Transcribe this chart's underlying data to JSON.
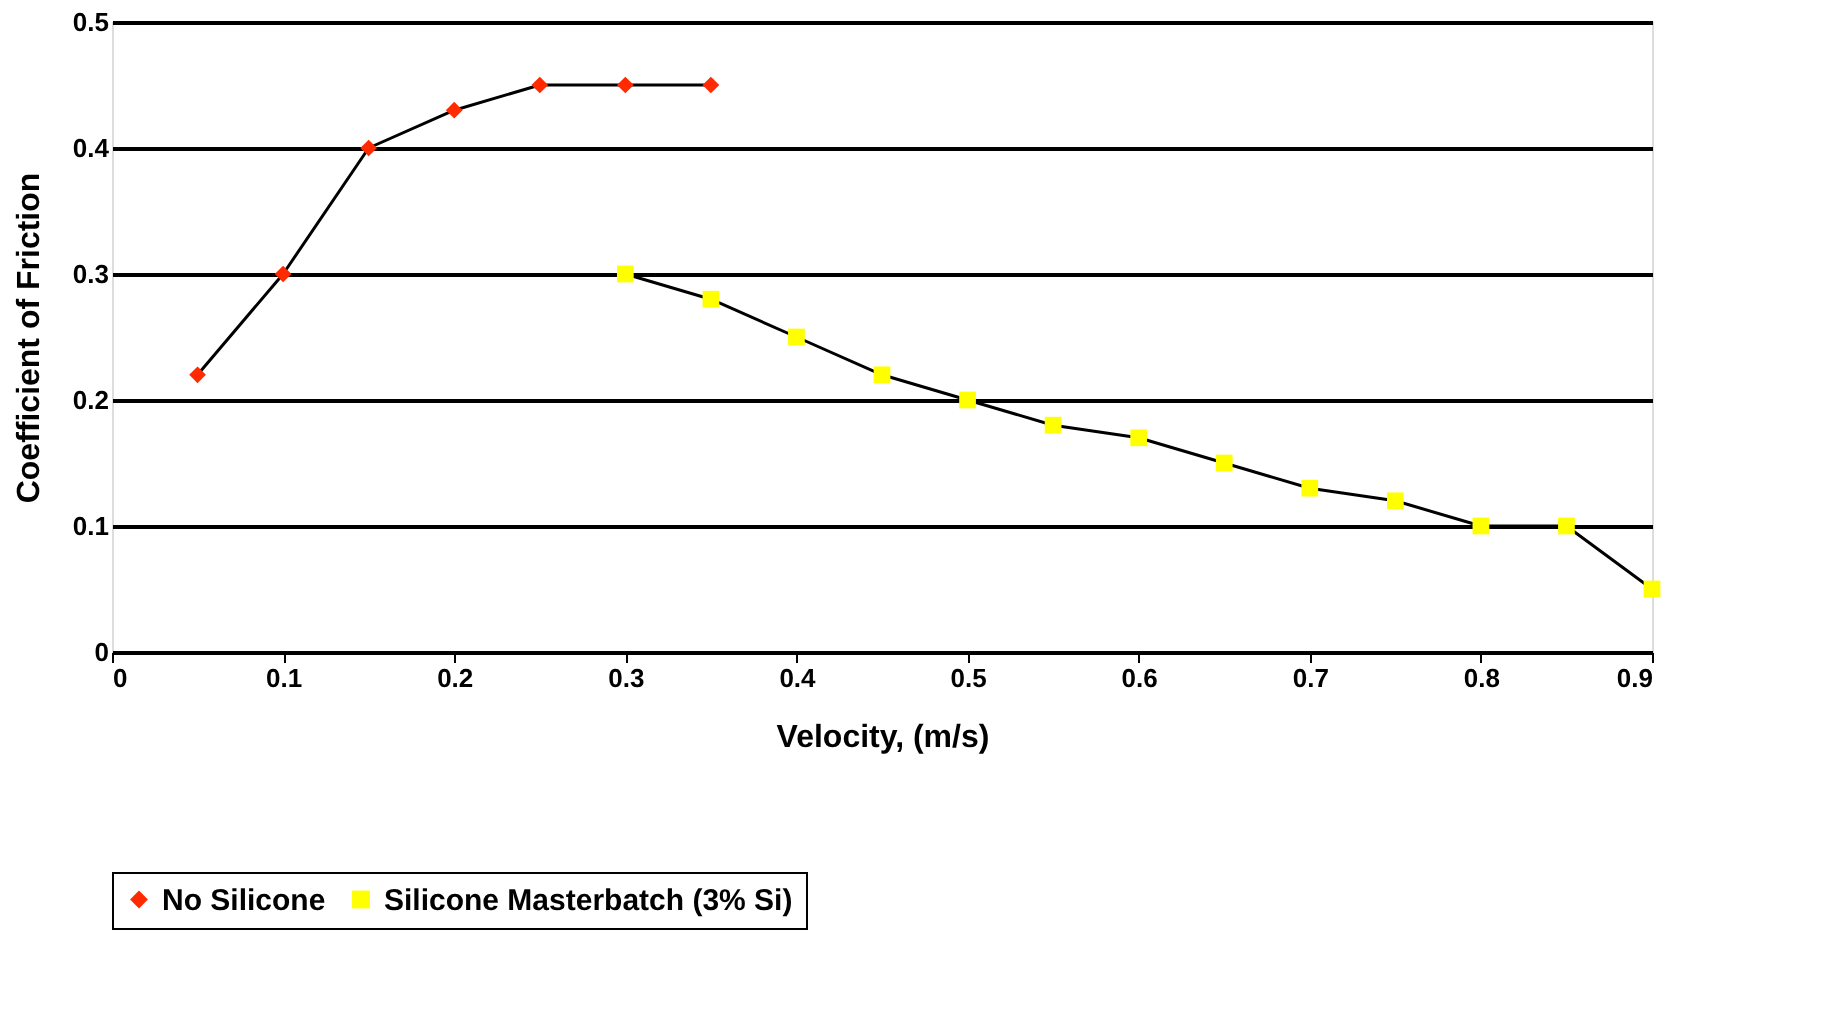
{
  "chart_data": {
    "type": "line",
    "xlabel": "Velocity, (m/s)",
    "ylabel": "Coefficient of Friction",
    "xlim": [
      0,
      0.9
    ],
    "xticks": [
      0,
      0.1,
      0.2,
      0.3,
      0.4,
      0.5,
      0.6,
      0.7,
      0.8,
      0.9
    ],
    "ylim": [
      0,
      0.5
    ],
    "yticks": [
      0,
      0.1,
      0.2,
      0.3,
      0.4,
      0.5
    ],
    "grid": "y",
    "legend": "bottom",
    "line_style": "solid",
    "series": [
      {
        "name": "No Silicone",
        "color": "#ff2a00",
        "marker": "diamond",
        "x": [
          0.05,
          0.1,
          0.15,
          0.2,
          0.25,
          0.3,
          0.35
        ],
        "values": [
          0.22,
          0.3,
          0.4,
          0.43,
          0.45,
          0.45,
          0.45
        ]
      },
      {
        "name": "Silicone Masterbatch (3% Si)",
        "color": "#ffff00",
        "marker": "square",
        "x": [
          0.3,
          0.35,
          0.4,
          0.45,
          0.5,
          0.55,
          0.6,
          0.65,
          0.7,
          0.75,
          0.8,
          0.85,
          0.9
        ],
        "values": [
          0.3,
          0.28,
          0.25,
          0.22,
          0.2,
          0.18,
          0.17,
          0.15,
          0.13,
          0.12,
          0.1,
          0.1,
          0.05
        ]
      }
    ]
  }
}
